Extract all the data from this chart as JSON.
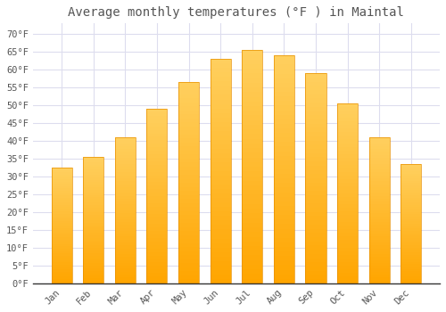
{
  "title": "Average monthly temperatures (°F ) in Maintal",
  "months": [
    "Jan",
    "Feb",
    "Mar",
    "Apr",
    "May",
    "Jun",
    "Jul",
    "Aug",
    "Sep",
    "Oct",
    "Nov",
    "Dec"
  ],
  "values": [
    32.5,
    35.5,
    41.0,
    49.0,
    56.5,
    63.0,
    65.5,
    64.0,
    59.0,
    50.5,
    41.0,
    33.5
  ],
  "bar_color_top": "#FFD060",
  "bar_color_bottom": "#FFA500",
  "bar_edge_color": "#E89000",
  "background_color": "#FFFFFF",
  "grid_color": "#DDDDEE",
  "text_color": "#555555",
  "spine_color": "#333333",
  "ylim": [
    0,
    73
  ],
  "yticks": [
    0,
    5,
    10,
    15,
    20,
    25,
    30,
    35,
    40,
    45,
    50,
    55,
    60,
    65,
    70
  ],
  "title_fontsize": 10,
  "tick_fontsize": 7.5,
  "font_family": "monospace"
}
